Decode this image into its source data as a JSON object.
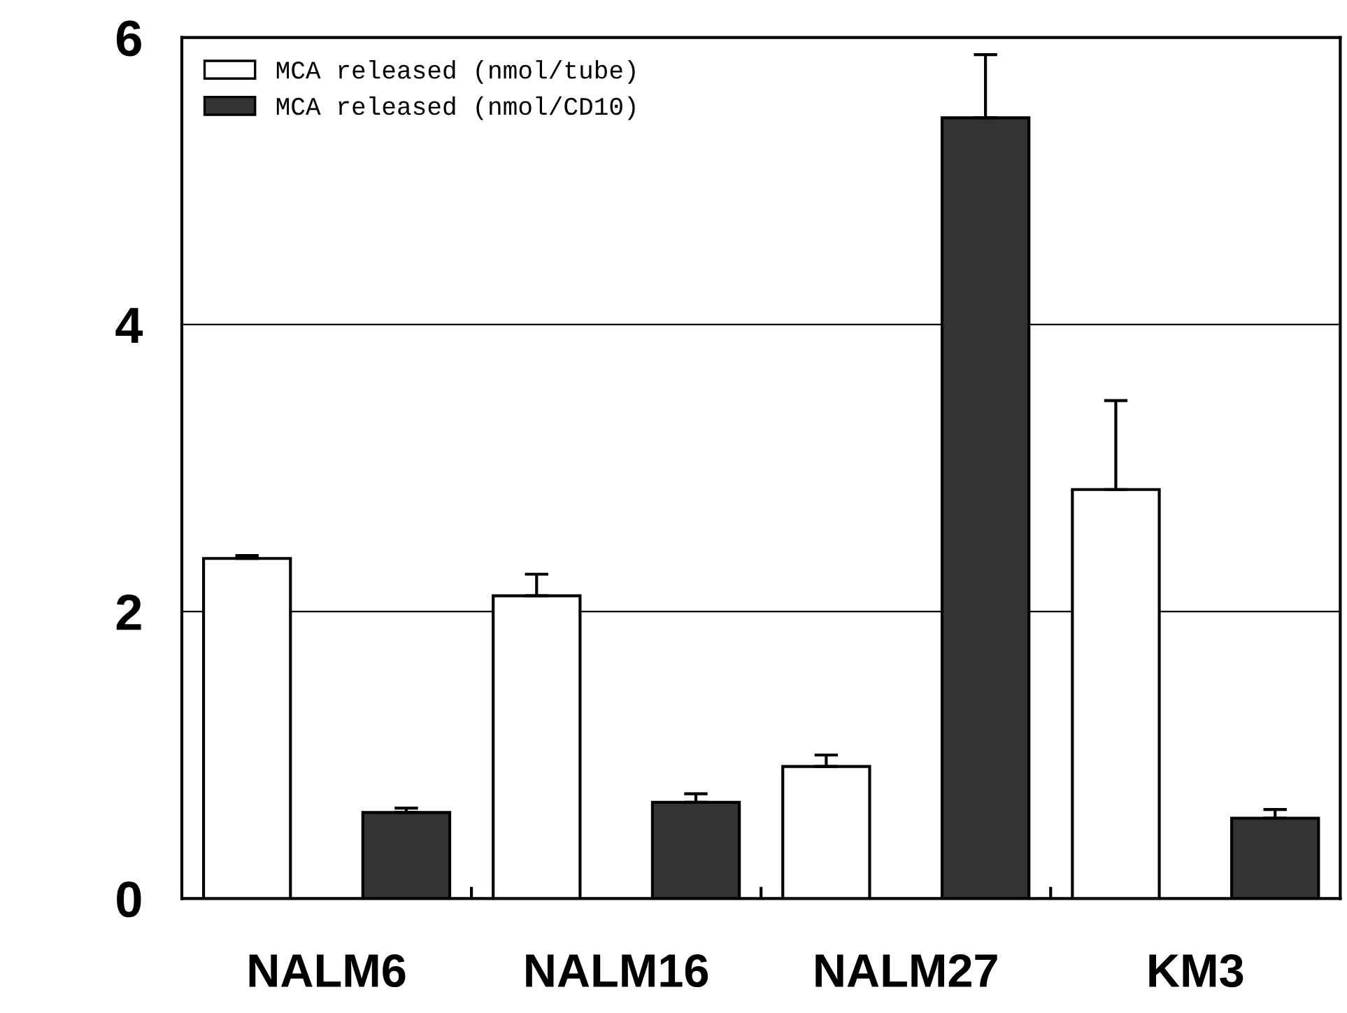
{
  "chart_data": {
    "type": "bar",
    "categories": [
      "NALM6",
      "NALM16",
      "NALM27",
      "KM3"
    ],
    "series": [
      {
        "name": "MCA released (nmol/tube)",
        "color": "#ffffff",
        "values": [
          2.37,
          2.11,
          0.92,
          2.85
        ],
        "errors": [
          0.02,
          0.15,
          0.08,
          0.62
        ]
      },
      {
        "name": "MCA released (nmol/CD10)",
        "color": "#333333",
        "values": [
          0.6,
          0.67,
          5.44,
          0.56
        ],
        "errors": [
          0.03,
          0.06,
          0.44,
          0.06
        ]
      }
    ],
    "ylim": [
      0,
      6
    ],
    "yticks": [
      0,
      2,
      4,
      6
    ],
    "grid": "y",
    "legend": "top left"
  }
}
